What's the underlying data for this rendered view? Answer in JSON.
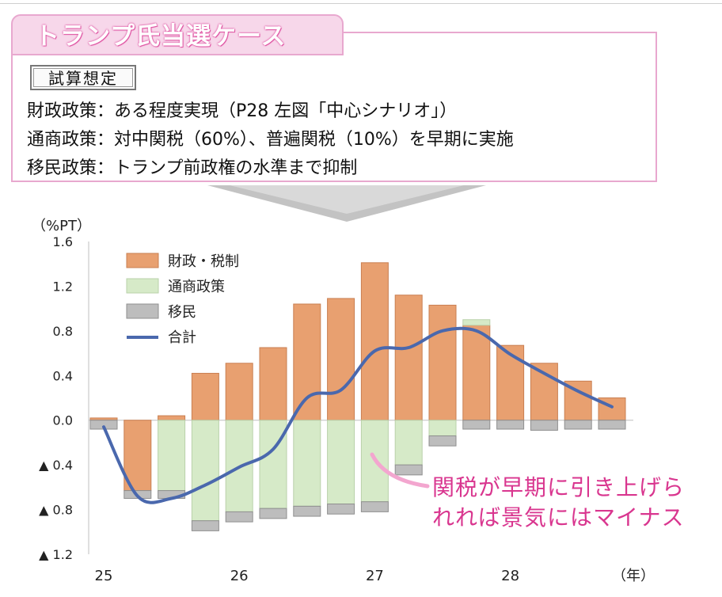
{
  "scenario": {
    "title": "トランプ氏当選ケース",
    "assumption_label": "試算想定",
    "lines": [
      "財政政策：ある程度実現（P28 左図「中心シナリオ」）",
      "通商政策：対中関税（60%）、普遍関税（10%）を早期に実施",
      "移民政策：トランプ前政権の水準まで抑制"
    ]
  },
  "annotation": [
    "関税が早期に引き上げら",
    "れれば景気にはマイナス"
  ],
  "colors": {
    "fiscal": "#e8a070",
    "trade": "#d6eac8",
    "immigration": "#bdbdbd",
    "total": "#4a68ad",
    "accent": "#d9368f"
  },
  "chart_data": {
    "type": "bar",
    "stacked": true,
    "unit_label": "（%PT）",
    "x_unit_label": "（年）",
    "ylim": [
      -1.2,
      1.6
    ],
    "y_ticks": [
      {
        "v": 1.6,
        "label": "1.6"
      },
      {
        "v": 1.2,
        "label": "1.2"
      },
      {
        "v": 0.8,
        "label": "0.8"
      },
      {
        "v": 0.4,
        "label": "0.4"
      },
      {
        "v": 0.0,
        "label": "0.0"
      },
      {
        "v": -0.4,
        "label": "▲ 0.4"
      },
      {
        "v": -0.8,
        "label": "▲ 0.8"
      },
      {
        "v": -1.2,
        "label": "▲ 1.2"
      }
    ],
    "x_ticks": [
      {
        "q": 0,
        "label": "25"
      },
      {
        "q": 4,
        "label": "26"
      },
      {
        "q": 8,
        "label": "27"
      },
      {
        "q": 12,
        "label": "28"
      }
    ],
    "n_quarters": 16,
    "series": [
      {
        "name": "財政・税制",
        "key": "fiscal",
        "values": [
          0.02,
          -0.63,
          0.04,
          0.42,
          0.51,
          0.65,
          1.04,
          1.09,
          1.41,
          1.12,
          1.03,
          0.85,
          0.67,
          0.51,
          0.35,
          0.2
        ]
      },
      {
        "name": "通商政策",
        "key": "trade",
        "values": [
          0,
          0,
          -0.63,
          -0.9,
          -0.82,
          -0.79,
          -0.77,
          -0.75,
          -0.73,
          -0.4,
          -0.14,
          0.05,
          0,
          0,
          0,
          0
        ]
      },
      {
        "name": "移民",
        "key": "immigration",
        "values": [
          -0.08,
          -0.07,
          -0.07,
          -0.09,
          -0.09,
          -0.09,
          -0.09,
          -0.09,
          -0.09,
          -0.09,
          -0.09,
          -0.08,
          -0.08,
          -0.09,
          -0.08,
          -0.08
        ]
      },
      {
        "name": "合計",
        "key": "total",
        "type": "line",
        "values": [
          -0.06,
          -0.68,
          -0.7,
          -0.58,
          -0.42,
          -0.26,
          0.2,
          0.27,
          0.62,
          0.65,
          0.8,
          0.8,
          0.59,
          0.42,
          0.26,
          0.12
        ]
      }
    ],
    "legend_position": "top-left",
    "grid": false
  }
}
